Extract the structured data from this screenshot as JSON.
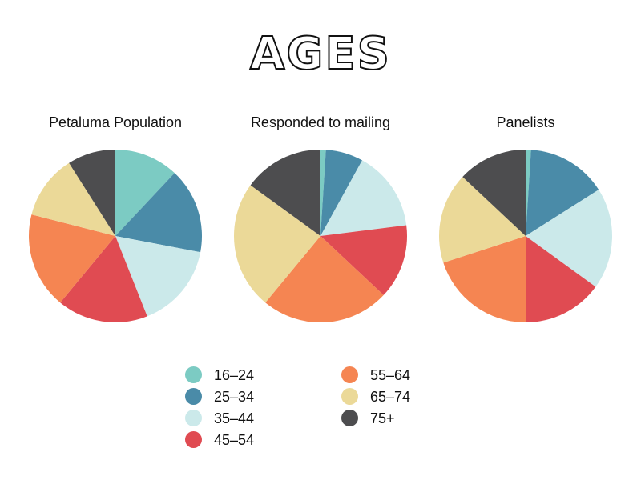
{
  "title": "AGES",
  "chart_data": [
    {
      "type": "pie",
      "title": "Petaluma Population",
      "categories": [
        "16–24",
        "25–34",
        "35–44",
        "45–54",
        "55–64",
        "65–74",
        "75+"
      ],
      "values": [
        12,
        16,
        16,
        17,
        18,
        12,
        9
      ],
      "colors": [
        "#7ccbc3",
        "#4a8ba8",
        "#cbe9ea",
        "#e04b52",
        "#f58552",
        "#ebd998",
        "#4d4d4f"
      ],
      "legend": "bottom"
    },
    {
      "type": "pie",
      "title": "Responded to mailing",
      "categories": [
        "16–24",
        "25–34",
        "35–44",
        "45–54",
        "55–64",
        "65–74",
        "75+"
      ],
      "values": [
        1,
        7,
        15,
        14,
        24,
        24,
        15
      ],
      "colors": [
        "#7ccbc3",
        "#4a8ba8",
        "#cbe9ea",
        "#e04b52",
        "#f58552",
        "#ebd998",
        "#4d4d4f"
      ],
      "legend": "bottom"
    },
    {
      "type": "pie",
      "title": "Panelists",
      "categories": [
        "16–24",
        "25–34",
        "35–44",
        "45–54",
        "55–64",
        "65–74",
        "75+"
      ],
      "values": [
        1,
        15,
        19,
        15,
        20,
        17,
        13
      ],
      "colors": [
        "#7ccbc3",
        "#4a8ba8",
        "#cbe9ea",
        "#e04b52",
        "#f58552",
        "#ebd998",
        "#4d4d4f"
      ],
      "legend": "bottom"
    }
  ],
  "legend": {
    "items": [
      {
        "label": "16–24",
        "color": "#7ccbc3"
      },
      {
        "label": "25–34",
        "color": "#4a8ba8"
      },
      {
        "label": "35–44",
        "color": "#cbe9ea"
      },
      {
        "label": "45–54",
        "color": "#e04b52"
      },
      {
        "label": "55–64",
        "color": "#f58552"
      },
      {
        "label": "65–74",
        "color": "#ebd998"
      },
      {
        "label": "75+",
        "color": "#4d4d4f"
      }
    ]
  }
}
